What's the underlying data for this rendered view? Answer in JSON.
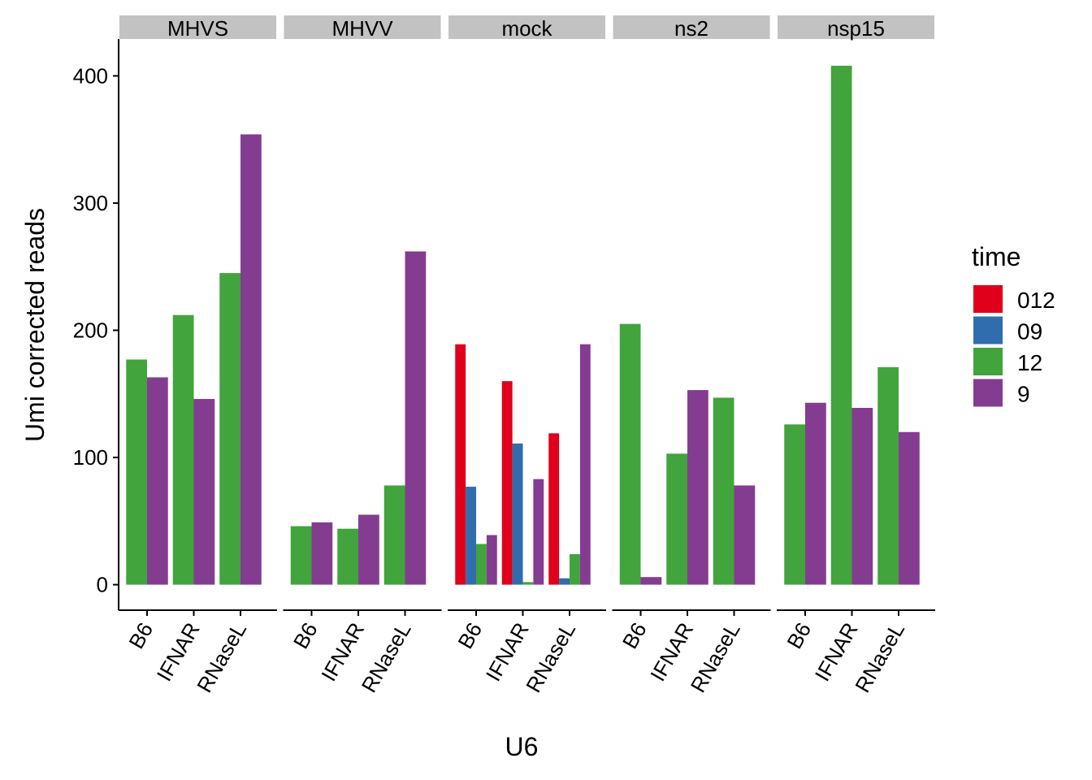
{
  "chart_data": {
    "type": "bar",
    "facet_by": "condition",
    "facets": [
      "MHVS",
      "MHVV",
      "mock",
      "ns2",
      "nsp15"
    ],
    "categories": [
      "B6",
      "IFNAR",
      "RNaseL"
    ],
    "xlabel": "U6",
    "ylabel": "Umi corrected reads",
    "ylim": [
      -20,
      430
    ],
    "yticks": [
      0,
      100,
      200,
      300,
      400
    ],
    "legend": {
      "title": "time",
      "position": "right",
      "entries": [
        {
          "name": "012",
          "color": "#E0001B"
        },
        {
          "name": "09",
          "color": "#2F6DAE"
        },
        {
          "name": "12",
          "color": "#41A43C"
        },
        {
          "name": "9",
          "color": "#843C91"
        }
      ]
    },
    "panels": [
      {
        "facet": "MHVS",
        "groups": [
          {
            "category": "B6",
            "bars": [
              {
                "time": "12",
                "value": 177
              },
              {
                "time": "9",
                "value": 163
              }
            ]
          },
          {
            "category": "IFNAR",
            "bars": [
              {
                "time": "12",
                "value": 212
              },
              {
                "time": "9",
                "value": 146
              }
            ]
          },
          {
            "category": "RNaseL",
            "bars": [
              {
                "time": "12",
                "value": 245
              },
              {
                "time": "9",
                "value": 354
              }
            ]
          }
        ]
      },
      {
        "facet": "MHVV",
        "groups": [
          {
            "category": "B6",
            "bars": [
              {
                "time": "12",
                "value": 46
              },
              {
                "time": "9",
                "value": 49
              }
            ]
          },
          {
            "category": "IFNAR",
            "bars": [
              {
                "time": "12",
                "value": 44
              },
              {
                "time": "9",
                "value": 55
              }
            ]
          },
          {
            "category": "RNaseL",
            "bars": [
              {
                "time": "12",
                "value": 78
              },
              {
                "time": "9",
                "value": 262
              }
            ]
          }
        ]
      },
      {
        "facet": "mock",
        "groups": [
          {
            "category": "B6",
            "bars": [
              {
                "time": "012",
                "value": 189
              },
              {
                "time": "09",
                "value": 77
              },
              {
                "time": "12",
                "value": 32
              },
              {
                "time": "9",
                "value": 39
              }
            ]
          },
          {
            "category": "IFNAR",
            "bars": [
              {
                "time": "012",
                "value": 160
              },
              {
                "time": "09",
                "value": 111
              },
              {
                "time": "12",
                "value": 2
              },
              {
                "time": "9",
                "value": 83
              }
            ]
          },
          {
            "category": "RNaseL",
            "bars": [
              {
                "time": "012",
                "value": 119
              },
              {
                "time": "09",
                "value": 5
              },
              {
                "time": "12",
                "value": 24
              },
              {
                "time": "9",
                "value": 189
              }
            ]
          }
        ]
      },
      {
        "facet": "ns2",
        "groups": [
          {
            "category": "B6",
            "bars": [
              {
                "time": "12",
                "value": 205
              },
              {
                "time": "9",
                "value": 6
              }
            ]
          },
          {
            "category": "IFNAR",
            "bars": [
              {
                "time": "12",
                "value": 103
              },
              {
                "time": "9",
                "value": 153
              }
            ]
          },
          {
            "category": "RNaseL",
            "bars": [
              {
                "time": "12",
                "value": 147
              },
              {
                "time": "9",
                "value": 78
              }
            ]
          }
        ]
      },
      {
        "facet": "nsp15",
        "groups": [
          {
            "category": "B6",
            "bars": [
              {
                "time": "12",
                "value": 126
              },
              {
                "time": "9",
                "value": 143
              }
            ]
          },
          {
            "category": "IFNAR",
            "bars": [
              {
                "time": "12",
                "value": 408
              },
              {
                "time": "9",
                "value": 139
              }
            ]
          },
          {
            "category": "RNaseL",
            "bars": [
              {
                "time": "12",
                "value": 171
              },
              {
                "time": "9",
                "value": 120
              }
            ]
          }
        ]
      }
    ]
  }
}
